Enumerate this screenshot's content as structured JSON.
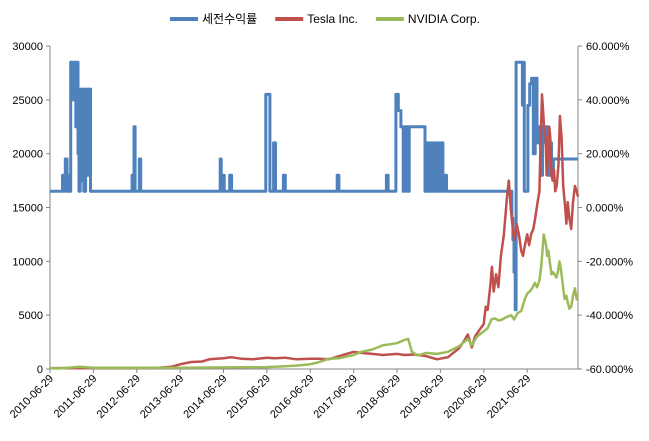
{
  "chart_data": {
    "type": "line",
    "title": "",
    "xlabel": "",
    "ylabel_left": "",
    "ylabel_right": "",
    "x_tick_labels": [
      "2010-06-29",
      "2011-06-29",
      "2012-06-29",
      "2013-06-29",
      "2014-06-29",
      "2015-06-29",
      "2016-06-29",
      "2017-06-29",
      "2018-06-29",
      "2019-06-29",
      "2020-06-29",
      "2021-06-29"
    ],
    "x_range": [
      "2010-06-29",
      "2022-08-31"
    ],
    "left_axis": {
      "min": 0,
      "max": 30000,
      "step": 5000,
      "tick_labels": [
        "0",
        "5000",
        "10000",
        "15000",
        "20000",
        "25000",
        "30000"
      ]
    },
    "right_axis": {
      "min": -60,
      "max": 60,
      "step": 20,
      "unit": "%",
      "tick_labels": [
        "-60.000%",
        "-40.000%",
        "-20.000%",
        "0.000%",
        "20.000%",
        "40.000%",
        "60.000%"
      ]
    },
    "grid": false,
    "legend_position": "top",
    "series": [
      {
        "name": "세전수익률",
        "axis": "right",
        "color": "#4F81BD",
        "baseline": 6,
        "points": [
          [
            "2010-06-29",
            6
          ],
          [
            "2010-10-05",
            6
          ],
          [
            "2010-10-12",
            12
          ],
          [
            "2010-10-28",
            6
          ],
          [
            "2010-11-05",
            18
          ],
          [
            "2010-11-20",
            6
          ],
          [
            "2010-11-30",
            12
          ],
          [
            "2010-12-10",
            6
          ],
          [
            "2010-12-20",
            54
          ],
          [
            "2011-01-05",
            40
          ],
          [
            "2011-01-15",
            54
          ],
          [
            "2011-02-01",
            30
          ],
          [
            "2011-02-10",
            54
          ],
          [
            "2011-02-20",
            20
          ],
          [
            "2011-02-28",
            6
          ],
          [
            "2011-03-10",
            44
          ],
          [
            "2011-03-20",
            10
          ],
          [
            "2011-03-31",
            44
          ],
          [
            "2011-04-10",
            6
          ],
          [
            "2011-04-25",
            44
          ],
          [
            "2011-05-05",
            12
          ],
          [
            "2011-05-20",
            44
          ],
          [
            "2011-06-05",
            6
          ],
          [
            "2011-06-29",
            6
          ],
          [
            "2012-05-15",
            6
          ],
          [
            "2012-05-20",
            12
          ],
          [
            "2012-05-28",
            6
          ],
          [
            "2012-06-05",
            30
          ],
          [
            "2012-06-15",
            6
          ],
          [
            "2012-07-10",
            6
          ],
          [
            "2012-07-20",
            18
          ],
          [
            "2012-08-01",
            6
          ],
          [
            "2014-05-20",
            6
          ],
          [
            "2014-06-01",
            18
          ],
          [
            "2014-06-10",
            6
          ],
          [
            "2014-06-20",
            12
          ],
          [
            "2014-07-05",
            6
          ],
          [
            "2014-08-10",
            6
          ],
          [
            "2014-08-20",
            12
          ],
          [
            "2014-09-05",
            6
          ],
          [
            "2015-06-10",
            6
          ],
          [
            "2015-06-20",
            42
          ],
          [
            "2015-07-10",
            42
          ],
          [
            "2015-07-25",
            6
          ],
          [
            "2015-08-15",
            6
          ],
          [
            "2015-08-25",
            24
          ],
          [
            "2015-09-10",
            6
          ],
          [
            "2015-11-05",
            6
          ],
          [
            "2015-11-15",
            12
          ],
          [
            "2015-12-01",
            6
          ],
          [
            "2016-01-05",
            6
          ],
          [
            "2016-01-15",
            6
          ],
          [
            "2017-02-01",
            6
          ],
          [
            "2017-02-10",
            12
          ],
          [
            "2017-02-25",
            6
          ],
          [
            "2018-03-20",
            6
          ],
          [
            "2018-04-01",
            12
          ],
          [
            "2018-04-15",
            6
          ],
          [
            "2018-06-05",
            6
          ],
          [
            "2018-06-20",
            42
          ],
          [
            "2018-07-10",
            36
          ],
          [
            "2018-08-01",
            30
          ],
          [
            "2018-08-20",
            6
          ],
          [
            "2018-09-05",
            30
          ],
          [
            "2018-09-25",
            6
          ],
          [
            "2018-10-10",
            30
          ],
          [
            "2019-02-10",
            30
          ],
          [
            "2019-02-20",
            6
          ],
          [
            "2019-03-05",
            24
          ],
          [
            "2019-03-15",
            6
          ],
          [
            "2019-03-25",
            24
          ],
          [
            "2019-04-05",
            6
          ],
          [
            "2019-04-15",
            24
          ],
          [
            "2019-04-25",
            6
          ],
          [
            "2019-05-10",
            24
          ],
          [
            "2019-05-20",
            6
          ],
          [
            "2019-06-05",
            24
          ],
          [
            "2019-06-20",
            6
          ],
          [
            "2019-07-05",
            24
          ],
          [
            "2019-07-20",
            6
          ],
          [
            "2019-08-05",
            12
          ],
          [
            "2019-08-20",
            6
          ],
          [
            "2021-02-10",
            6
          ],
          [
            "2021-02-20",
            -4
          ],
          [
            "2021-03-01",
            -12
          ],
          [
            "2021-03-10",
            -24
          ],
          [
            "2021-03-20",
            -38
          ],
          [
            "2021-03-28",
            54
          ],
          [
            "2021-05-10",
            54
          ],
          [
            "2021-05-20",
            38
          ],
          [
            "2021-05-28",
            54
          ],
          [
            "2021-06-05",
            6
          ],
          [
            "2021-06-20",
            6
          ],
          [
            "2021-07-05",
            38
          ],
          [
            "2021-07-20",
            46
          ],
          [
            "2021-08-05",
            48
          ],
          [
            "2021-08-20",
            20
          ],
          [
            "2021-09-05",
            48
          ],
          [
            "2021-09-20",
            24
          ],
          [
            "2021-10-05",
            30
          ],
          [
            "2021-10-20",
            12
          ],
          [
            "2021-11-05",
            30
          ],
          [
            "2021-11-20",
            24
          ],
          [
            "2021-12-05",
            30
          ],
          [
            "2021-12-20",
            12
          ],
          [
            "2022-01-05",
            24
          ],
          [
            "2022-01-20",
            12
          ],
          [
            "2022-02-05",
            18
          ]
        ]
      },
      {
        "name": "Tesla Inc.",
        "axis": "left",
        "color": "#C0504D",
        "points": [
          [
            "2010-06-29",
            80
          ],
          [
            "2011-06-29",
            90
          ],
          [
            "2012-06-29",
            100
          ],
          [
            "2013-01-01",
            110
          ],
          [
            "2013-04-15",
            200
          ],
          [
            "2013-07-01",
            450
          ],
          [
            "2013-10-01",
            650
          ],
          [
            "2014-01-01",
            700
          ],
          [
            "2014-03-01",
            900
          ],
          [
            "2014-06-29",
            1000
          ],
          [
            "2014-09-01",
            1100
          ],
          [
            "2014-12-01",
            950
          ],
          [
            "2015-03-01",
            900
          ],
          [
            "2015-06-29",
            1050
          ],
          [
            "2015-09-01",
            1000
          ],
          [
            "2015-12-01",
            1050
          ],
          [
            "2016-03-01",
            900
          ],
          [
            "2016-06-29",
            950
          ],
          [
            "2016-09-01",
            950
          ],
          [
            "2016-12-01",
            900
          ],
          [
            "2017-03-01",
            1200
          ],
          [
            "2017-06-29",
            1600
          ],
          [
            "2017-09-01",
            1500
          ],
          [
            "2017-12-01",
            1400
          ],
          [
            "2018-03-01",
            1300
          ],
          [
            "2018-06-29",
            1400
          ],
          [
            "2018-09-01",
            1300
          ],
          [
            "2018-12-01",
            1350
          ],
          [
            "2019-03-01",
            1200
          ],
          [
            "2019-06-01",
            900
          ],
          [
            "2019-09-01",
            1100
          ],
          [
            "2019-12-01",
            1900
          ],
          [
            "2020-01-15",
            2600
          ],
          [
            "2020-02-15",
            3200
          ],
          [
            "2020-03-20",
            2000
          ],
          [
            "2020-04-15",
            3000
          ],
          [
            "2020-05-15",
            3500
          ],
          [
            "2020-06-29",
            4200
          ],
          [
            "2020-07-15",
            5800
          ],
          [
            "2020-08-01",
            5500
          ],
          [
            "2020-08-25",
            8000
          ],
          [
            "2020-09-05",
            9500
          ],
          [
            "2020-09-20",
            7200
          ],
          [
            "2020-10-10",
            8800
          ],
          [
            "2020-10-30",
            7600
          ],
          [
            "2020-11-20",
            10500
          ],
          [
            "2020-12-15",
            12500
          ],
          [
            "2021-01-10",
            16000
          ],
          [
            "2021-01-25",
            17500
          ],
          [
            "2021-02-10",
            15000
          ],
          [
            "2021-03-05",
            12500
          ],
          [
            "2021-03-15",
            12000
          ],
          [
            "2021-04-01",
            13500
          ],
          [
            "2021-04-20",
            12500
          ],
          [
            "2021-05-10",
            11000
          ],
          [
            "2021-05-25",
            10500
          ],
          [
            "2021-06-10",
            11500
          ],
          [
            "2021-06-29",
            12500
          ],
          [
            "2021-07-15",
            11500
          ],
          [
            "2021-08-01",
            12500
          ],
          [
            "2021-08-20",
            13000
          ],
          [
            "2021-09-05",
            14000
          ],
          [
            "2021-09-25",
            15500
          ],
          [
            "2021-10-10",
            16500
          ],
          [
            "2021-10-20",
            21000
          ],
          [
            "2021-11-01",
            25500
          ],
          [
            "2021-11-10",
            24000
          ],
          [
            "2021-11-20",
            22000
          ],
          [
            "2021-12-01",
            21500
          ],
          [
            "2021-12-10",
            18000
          ],
          [
            "2021-12-20",
            19500
          ],
          [
            "2022-01-01",
            22500
          ],
          [
            "2022-01-10",
            21500
          ],
          [
            "2022-01-20",
            18000
          ],
          [
            "2022-01-30",
            17500
          ],
          [
            "2022-02-10",
            18500
          ],
          [
            "2022-02-20",
            16500
          ],
          [
            "2022-03-05",
            17000
          ],
          [
            "2022-03-20",
            19000
          ],
          [
            "2022-04-01",
            23500
          ],
          [
            "2022-04-15",
            21500
          ],
          [
            "2022-04-28",
            17000
          ],
          [
            "2022-05-15",
            15000
          ],
          [
            "2022-05-25",
            13500
          ],
          [
            "2022-06-05",
            15500
          ],
          [
            "2022-06-20",
            14000
          ],
          [
            "2022-07-05",
            13000
          ],
          [
            "2022-07-20",
            15500
          ],
          [
            "2022-08-05",
            17000
          ],
          [
            "2022-08-20",
            16500
          ],
          [
            "2022-08-31",
            16000
          ]
        ]
      },
      {
        "name": "NVIDIA Corp.",
        "axis": "left",
        "color": "#9BBB59",
        "points": [
          [
            "2010-06-29",
            80
          ],
          [
            "2010-09-01",
            50
          ],
          [
            "2010-12-01",
            120
          ],
          [
            "2011-03-01",
            200
          ],
          [
            "2011-06-29",
            120
          ],
          [
            "2012-06-29",
            110
          ],
          [
            "2013-06-29",
            120
          ],
          [
            "2014-06-29",
            150
          ],
          [
            "2015-06-29",
            180
          ],
          [
            "2015-12-01",
            250
          ],
          [
            "2016-03-01",
            320
          ],
          [
            "2016-06-29",
            450
          ],
          [
            "2016-09-01",
            600
          ],
          [
            "2016-12-01",
            950
          ],
          [
            "2017-03-01",
            1000
          ],
          [
            "2017-06-29",
            1300
          ],
          [
            "2017-09-01",
            1600
          ],
          [
            "2017-12-01",
            1800
          ],
          [
            "2018-03-01",
            2200
          ],
          [
            "2018-06-29",
            2400
          ],
          [
            "2018-09-01",
            2700
          ],
          [
            "2018-10-01",
            2800
          ],
          [
            "2018-11-01",
            1600
          ],
          [
            "2018-12-20",
            1250
          ],
          [
            "2019-03-01",
            1500
          ],
          [
            "2019-06-01",
            1400
          ],
          [
            "2019-09-01",
            1600
          ],
          [
            "2019-12-01",
            2100
          ],
          [
            "2020-02-15",
            2800
          ],
          [
            "2020-03-20",
            2200
          ],
          [
            "2020-05-01",
            3000
          ],
          [
            "2020-06-29",
            3500
          ],
          [
            "2020-08-01",
            3800
          ],
          [
            "2020-09-01",
            4600
          ],
          [
            "2020-10-01",
            4700
          ],
          [
            "2020-11-01",
            4500
          ],
          [
            "2020-12-01",
            4600
          ],
          [
            "2021-01-01",
            4800
          ],
          [
            "2021-02-15",
            5000
          ],
          [
            "2021-03-10",
            4600
          ],
          [
            "2021-04-10",
            5200
          ],
          [
            "2021-05-10",
            5400
          ],
          [
            "2021-06-10",
            6500
          ],
          [
            "2021-06-29",
            7000
          ],
          [
            "2021-07-20",
            7200
          ],
          [
            "2021-08-10",
            7500
          ],
          [
            "2021-09-01",
            8000
          ],
          [
            "2021-09-20",
            7600
          ],
          [
            "2021-10-10",
            8200
          ],
          [
            "2021-10-25",
            9500
          ],
          [
            "2021-11-05",
            11000
          ],
          [
            "2021-11-15",
            12500
          ],
          [
            "2021-11-25",
            12000
          ],
          [
            "2021-12-05",
            11500
          ],
          [
            "2021-12-15",
            10500
          ],
          [
            "2021-12-25",
            11000
          ],
          [
            "2022-01-05",
            10000
          ],
          [
            "2022-01-20",
            8800
          ],
          [
            "2022-02-01",
            9000
          ],
          [
            "2022-02-15",
            8800
          ],
          [
            "2022-03-01",
            8500
          ],
          [
            "2022-03-15",
            9000
          ],
          [
            "2022-03-28",
            10000
          ],
          [
            "2022-04-10",
            9200
          ],
          [
            "2022-04-25",
            7800
          ],
          [
            "2022-05-10",
            6500
          ],
          [
            "2022-05-25",
            6800
          ],
          [
            "2022-06-05",
            6200
          ],
          [
            "2022-06-20",
            5600
          ],
          [
            "2022-07-05",
            5800
          ],
          [
            "2022-07-20",
            6800
          ],
          [
            "2022-08-05",
            7500
          ],
          [
            "2022-08-20",
            6500
          ],
          [
            "2022-08-31",
            6400
          ]
        ]
      }
    ]
  }
}
